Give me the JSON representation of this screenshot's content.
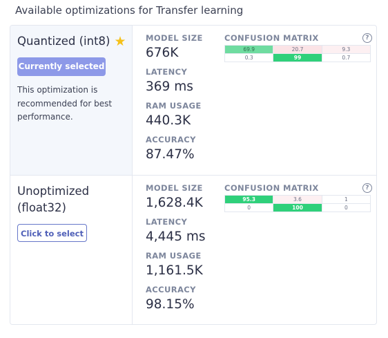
{
  "page_title": "Available optimizations for Transfer learning",
  "colors": {
    "accent": "#8d99e8",
    "outline_button": "#6576c9",
    "cm_green_strong": "#2fd07a",
    "cm_green_light": "#6fdca0",
    "cm_pink": "#fbe3e6",
    "star": "#f5c11a"
  },
  "options": [
    {
      "name": "Quantized (int8)",
      "has_star_icon": true,
      "button_label": "Currently selected",
      "description": "This optimization is recommended for best performance.",
      "metrics": [
        {
          "label": "MODEL SIZE",
          "value": "676K"
        },
        {
          "label": "LATENCY",
          "value": "369 ms"
        },
        {
          "label": "RAM USAGE",
          "value": "440.3K"
        },
        {
          "label": "ACCURACY",
          "value": "87.47%"
        }
      ],
      "confusion_matrix_label": "CONFUSION MATRIX",
      "confusion_matrix": [
        [
          {
            "value": "69.9",
            "style": "green-light"
          },
          {
            "value": "20.7",
            "style": "pink"
          },
          {
            "value": "9.3",
            "style": "pink-faint"
          }
        ],
        [
          {
            "value": "0.3",
            "style": "none"
          },
          {
            "value": "99",
            "style": "green-strong"
          },
          {
            "value": "0.7",
            "style": "none"
          }
        ]
      ]
    },
    {
      "name": "Unoptimized (float32)",
      "has_star_icon": false,
      "button_label": "Click to select",
      "description": "",
      "metrics": [
        {
          "label": "MODEL SIZE",
          "value": "1,628.4K"
        },
        {
          "label": "LATENCY",
          "value": "4,445 ms"
        },
        {
          "label": "RAM USAGE",
          "value": "1,161.5K"
        },
        {
          "label": "ACCURACY",
          "value": "98.15%"
        }
      ],
      "confusion_matrix_label": "CONFUSION MATRIX",
      "confusion_matrix": [
        [
          {
            "value": "95.3",
            "style": "green-strong"
          },
          {
            "value": "3.6",
            "style": "pink-faint"
          },
          {
            "value": "1",
            "style": "none"
          }
        ],
        [
          {
            "value": "0",
            "style": "none"
          },
          {
            "value": "100",
            "style": "green-strong"
          },
          {
            "value": "0",
            "style": "none"
          }
        ]
      ]
    }
  ]
}
